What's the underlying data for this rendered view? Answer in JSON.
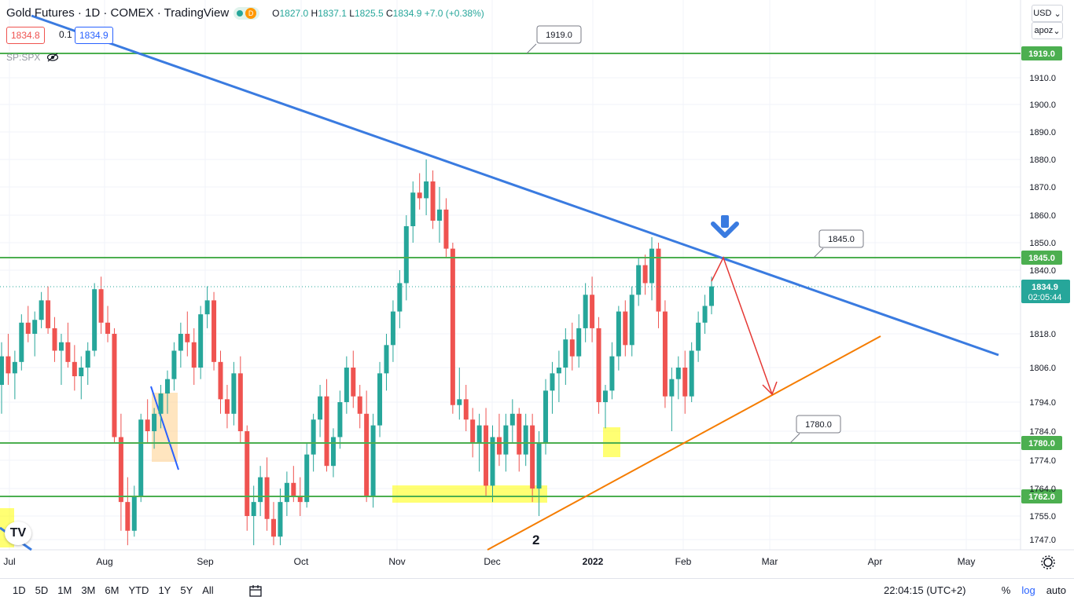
{
  "legend": {
    "title": "Gold Futures · 1D · COMEX · TradingView",
    "indicator_letter": "D",
    "o_label": "O",
    "o_value": "1827.0",
    "h_label": "H",
    "h_value": "1837.1",
    "l_label": "L",
    "l_value": "1825.5",
    "c_label": "C",
    "c_value": "1834.9",
    "change": "+7.0 (+0.38%)"
  },
  "prices": {
    "bid": "1834.8",
    "spread": "0.1",
    "ask": "1834.9"
  },
  "compare_symbol": "SP:SPX",
  "top_right": {
    "currency": "USD",
    "scale_mode": "apoz"
  },
  "colors": {
    "up": "#26a69a",
    "down": "#ef5350",
    "support_line": "#4caf50",
    "trend_blue": "#2962ff",
    "trend_orange": "#f57c00",
    "highlight": "#ffff00",
    "projection": "#e53935"
  },
  "chart_data": {
    "type": "candlestick",
    "title": "Gold Futures · 1D · COMEX",
    "y_axis_ticks": [
      "1910.0",
      "1900.0",
      "1890.0",
      "1880.0",
      "1870.0",
      "1860.0",
      "1850.0",
      "1840.0",
      "1818.0",
      "1806.0",
      "1794.0",
      "1784.0",
      "1774.0",
      "1764.0",
      "1755.0",
      "1747.0"
    ],
    "x_axis_labels": [
      "Jul",
      "Aug",
      "Sep",
      "Oct",
      "Nov",
      "Dec",
      "2022",
      "Feb",
      "Mar",
      "Apr",
      "May"
    ],
    "horizontal_levels": [
      {
        "value": "1919.0",
        "label": "1919.0"
      },
      {
        "value": "1845.0",
        "label": "1845.0"
      },
      {
        "value": "1780.0",
        "label": "1780.0"
      },
      {
        "value": "1762.0",
        "label": "1762.0"
      }
    ],
    "current_price": "1834.9",
    "countdown": "02:05:44",
    "annotation_number": "2",
    "candles": [
      [
        1800,
        1815,
        1790,
        1810
      ],
      [
        1810,
        1818,
        1800,
        1804
      ],
      [
        1804,
        1812,
        1795,
        1808
      ],
      [
        1808,
        1825,
        1805,
        1822
      ],
      [
        1822,
        1828,
        1815,
        1818
      ],
      [
        1818,
        1826,
        1810,
        1823
      ],
      [
        1823,
        1833,
        1820,
        1830
      ],
      [
        1830,
        1835,
        1818,
        1820
      ],
      [
        1820,
        1824,
        1808,
        1812
      ],
      [
        1812,
        1818,
        1800,
        1815
      ],
      [
        1815,
        1822,
        1806,
        1808
      ],
      [
        1808,
        1814,
        1798,
        1803
      ],
      [
        1803,
        1810,
        1795,
        1806
      ],
      [
        1806,
        1815,
        1800,
        1812
      ],
      [
        1812,
        1836,
        1810,
        1834
      ],
      [
        1834,
        1838,
        1818,
        1822
      ],
      [
        1822,
        1828,
        1815,
        1818
      ],
      [
        1818,
        1820,
        1780,
        1782
      ],
      [
        1782,
        1790,
        1750,
        1760
      ],
      [
        1760,
        1768,
        1745,
        1750
      ],
      [
        1750,
        1765,
        1748,
        1762
      ],
      [
        1762,
        1790,
        1760,
        1788
      ],
      [
        1788,
        1795,
        1780,
        1784
      ],
      [
        1784,
        1792,
        1778,
        1790
      ],
      [
        1790,
        1800,
        1785,
        1797
      ],
      [
        1797,
        1805,
        1790,
        1802
      ],
      [
        1802,
        1815,
        1798,
        1812
      ],
      [
        1812,
        1822,
        1806,
        1818
      ],
      [
        1818,
        1826,
        1810,
        1815
      ],
      [
        1815,
        1820,
        1800,
        1806
      ],
      [
        1806,
        1828,
        1802,
        1825
      ],
      [
        1825,
        1835,
        1820,
        1830
      ],
      [
        1830,
        1833,
        1805,
        1808
      ],
      [
        1808,
        1812,
        1790,
        1795
      ],
      [
        1795,
        1800,
        1785,
        1790
      ],
      [
        1790,
        1808,
        1786,
        1804
      ],
      [
        1804,
        1810,
        1780,
        1784
      ],
      [
        1784,
        1786,
        1750,
        1755
      ],
      [
        1755,
        1765,
        1745,
        1760
      ],
      [
        1760,
        1772,
        1755,
        1768
      ],
      [
        1768,
        1775,
        1750,
        1754
      ],
      [
        1754,
        1760,
        1745,
        1748
      ],
      [
        1748,
        1764,
        1745,
        1760
      ],
      [
        1760,
        1770,
        1755,
        1766
      ],
      [
        1766,
        1772,
        1760,
        1762
      ],
      [
        1762,
        1768,
        1755,
        1760
      ],
      [
        1760,
        1780,
        1758,
        1776
      ],
      [
        1776,
        1790,
        1770,
        1788
      ],
      [
        1788,
        1800,
        1782,
        1796
      ],
      [
        1796,
        1802,
        1770,
        1772
      ],
      [
        1772,
        1785,
        1768,
        1782
      ],
      [
        1782,
        1798,
        1778,
        1794
      ],
      [
        1794,
        1810,
        1790,
        1806
      ],
      [
        1806,
        1812,
        1792,
        1796
      ],
      [
        1796,
        1800,
        1785,
        1790
      ],
      [
        1790,
        1798,
        1760,
        1762
      ],
      [
        1762,
        1790,
        1758,
        1786
      ],
      [
        1786,
        1808,
        1782,
        1804
      ],
      [
        1804,
        1818,
        1798,
        1814
      ],
      [
        1814,
        1830,
        1808,
        1826
      ],
      [
        1826,
        1840,
        1820,
        1836
      ],
      [
        1836,
        1860,
        1830,
        1856
      ],
      [
        1856,
        1872,
        1850,
        1868
      ],
      [
        1868,
        1875,
        1862,
        1866
      ],
      [
        1866,
        1880,
        1860,
        1872
      ],
      [
        1872,
        1876,
        1855,
        1858
      ],
      [
        1858,
        1870,
        1850,
        1862
      ],
      [
        1862,
        1866,
        1845,
        1848
      ],
      [
        1848,
        1850,
        1790,
        1793
      ],
      [
        1793,
        1806,
        1788,
        1795
      ],
      [
        1795,
        1800,
        1784,
        1788
      ],
      [
        1788,
        1792,
        1775,
        1780
      ],
      [
        1780,
        1790,
        1770,
        1786
      ],
      [
        1786,
        1792,
        1762,
        1765
      ],
      [
        1765,
        1786,
        1760,
        1782
      ],
      [
        1782,
        1790,
        1772,
        1776
      ],
      [
        1776,
        1790,
        1770,
        1786
      ],
      [
        1786,
        1795,
        1780,
        1790
      ],
      [
        1790,
        1792,
        1770,
        1776
      ],
      [
        1776,
        1790,
        1772,
        1786
      ],
      [
        1786,
        1790,
        1760,
        1764
      ],
      [
        1764,
        1784,
        1755,
        1780
      ],
      [
        1780,
        1802,
        1776,
        1798
      ],
      [
        1798,
        1808,
        1790,
        1804
      ],
      [
        1804,
        1812,
        1794,
        1806
      ],
      [
        1806,
        1820,
        1800,
        1816
      ],
      [
        1816,
        1822,
        1805,
        1810
      ],
      [
        1810,
        1825,
        1806,
        1820
      ],
      [
        1820,
        1836,
        1815,
        1832
      ],
      [
        1832,
        1838,
        1815,
        1820
      ],
      [
        1820,
        1824,
        1790,
        1794
      ],
      [
        1794,
        1800,
        1785,
        1798
      ],
      [
        1798,
        1815,
        1795,
        1810
      ],
      [
        1810,
        1828,
        1805,
        1826
      ],
      [
        1826,
        1830,
        1810,
        1814
      ],
      [
        1814,
        1835,
        1810,
        1832
      ],
      [
        1832,
        1845,
        1828,
        1842
      ],
      [
        1842,
        1846,
        1832,
        1836
      ],
      [
        1836,
        1852,
        1830,
        1848
      ],
      [
        1848,
        1850,
        1820,
        1826
      ],
      [
        1826,
        1830,
        1792,
        1796
      ],
      [
        1796,
        1806,
        1784,
        1802
      ],
      [
        1802,
        1810,
        1795,
        1806
      ],
      [
        1806,
        1812,
        1790,
        1796
      ],
      [
        1796,
        1815,
        1794,
        1812
      ],
      [
        1812,
        1826,
        1808,
        1822
      ],
      [
        1822,
        1832,
        1818,
        1828
      ],
      [
        1828,
        1838,
        1825,
        1835
      ]
    ]
  },
  "bottom": {
    "timeframes": [
      "1D",
      "5D",
      "1M",
      "3M",
      "6M",
      "YTD",
      "1Y",
      "5Y",
      "All"
    ],
    "clock": "22:04:15 (UTC+2)",
    "percent": "%",
    "log": "log",
    "auto": "auto"
  }
}
